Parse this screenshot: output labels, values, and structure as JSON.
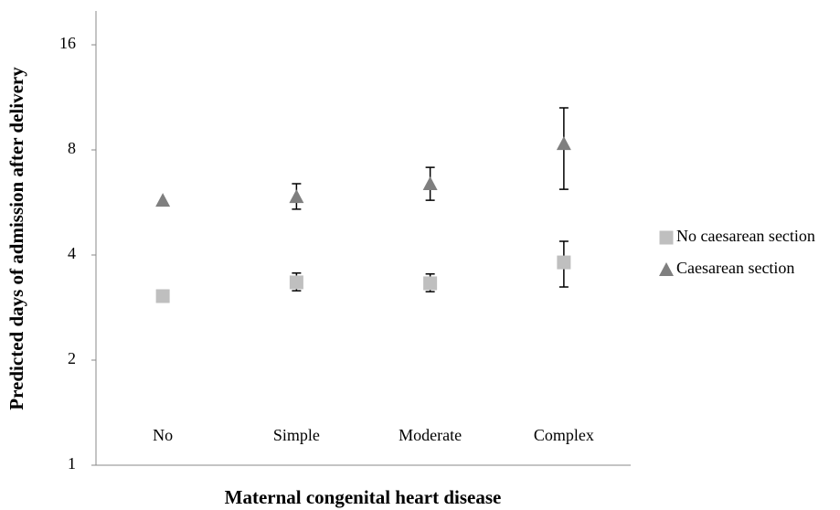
{
  "chart_data": {
    "type": "scatter",
    "x_label": "Maternal congenital heart disease",
    "y_label": "Predicted days of admission after delivery",
    "categories": [
      "No",
      "Simple",
      "Moderate",
      "Complex"
    ],
    "log_scale_y": true,
    "log_base": 2,
    "ylim": [
      1,
      20
    ],
    "yticks": [
      1,
      2,
      4,
      8,
      16
    ],
    "legend": "right",
    "series": [
      {
        "name": "No caesarean section",
        "color": "#bfbfbf",
        "marker": "square",
        "values": [
          3.05,
          3.34,
          3.32,
          3.81
        ],
        "lower": [
          null,
          3.16,
          3.14,
          3.24
        ],
        "upper": [
          null,
          3.55,
          3.53,
          4.38
        ]
      },
      {
        "name": "Caesarean section",
        "color": "#7f7f7f",
        "marker": "triangle",
        "values": [
          5.74,
          5.88,
          6.4,
          8.34
        ],
        "lower": [
          null,
          5.41,
          5.74,
          6.17
        ],
        "upper": [
          null,
          6.4,
          7.13,
          10.56
        ]
      }
    ]
  }
}
